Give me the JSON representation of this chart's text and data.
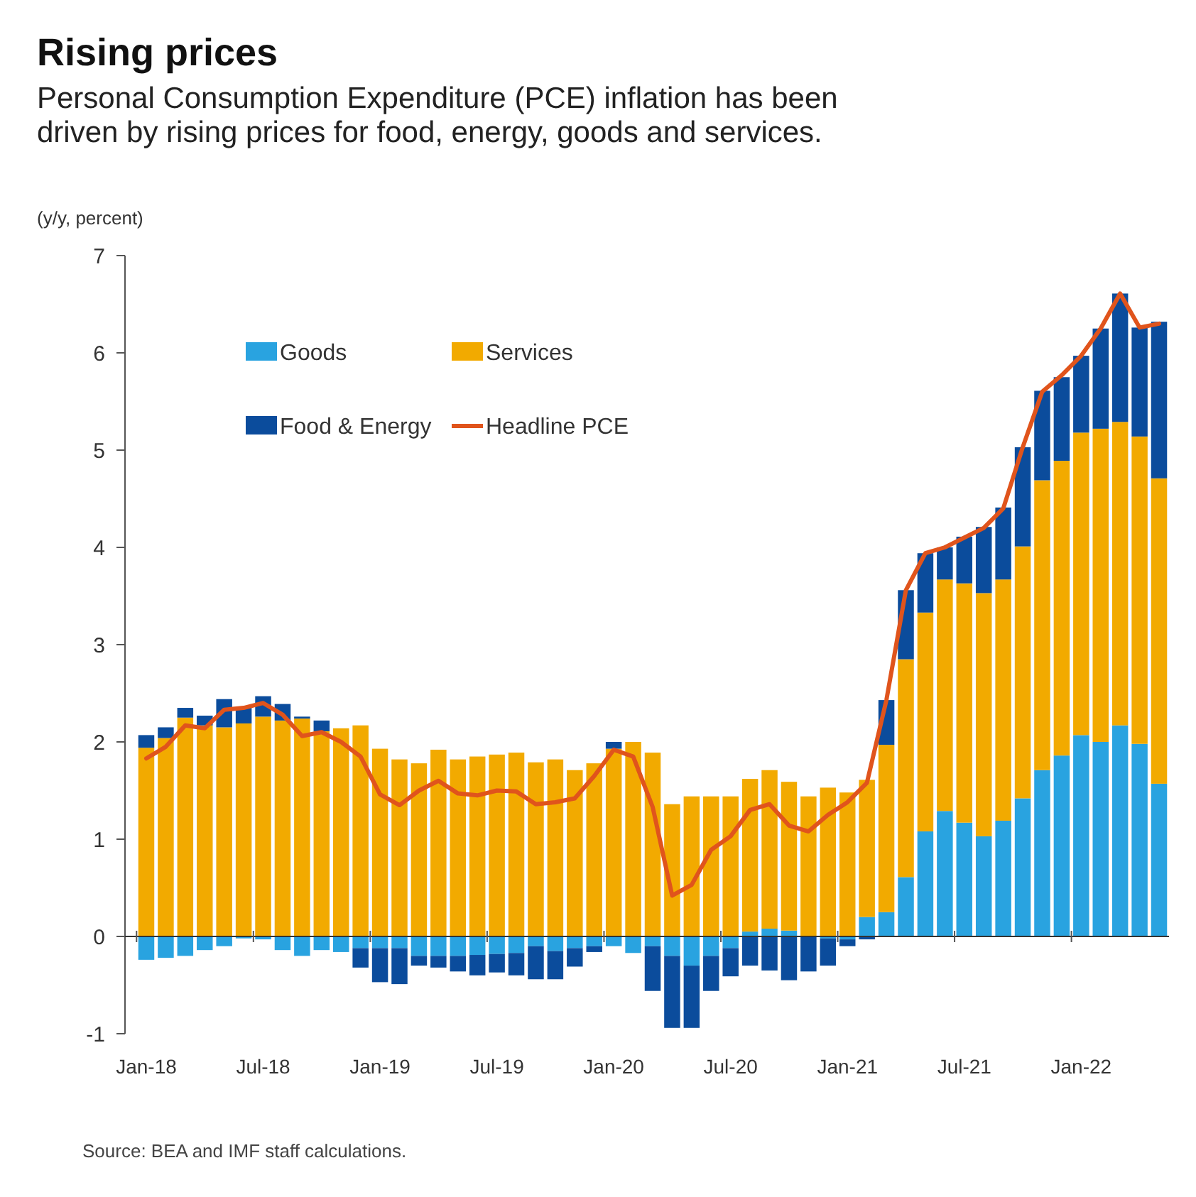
{
  "chart_data": {
    "type": "bar",
    "title": "Rising prices",
    "subtitle": "Personal Consumption Expenditure (PCE) inflation has been driven by rising prices for food, energy, goods and services.",
    "ylabel": "(y/y, percent)",
    "categories": [
      "Jan-18",
      null,
      null,
      null,
      null,
      null,
      "Jul-18",
      null,
      null,
      null,
      null,
      null,
      "Jan-19",
      null,
      null,
      null,
      null,
      null,
      "Jul-19",
      null,
      null,
      null,
      null,
      null,
      "Jan-20",
      null,
      null,
      null,
      null,
      null,
      "Jul-20",
      null,
      null,
      null,
      null,
      null,
      "Jan-21",
      null,
      null,
      null,
      null,
      null,
      "Jul-21",
      null,
      null,
      null,
      null,
      null,
      "Jan-22",
      null,
      null,
      null,
      null
    ],
    "stacked": true,
    "series": [
      {
        "name": "Goods",
        "color": "#29a3e0",
        "values": [
          -0.24,
          -0.22,
          -0.2,
          -0.14,
          -0.1,
          -0.02,
          -0.03,
          -0.14,
          -0.2,
          -0.14,
          -0.16,
          -0.12,
          -0.12,
          -0.12,
          -0.2,
          -0.2,
          -0.2,
          -0.19,
          -0.18,
          -0.17,
          -0.1,
          -0.15,
          -0.12,
          -0.1,
          -0.1,
          -0.17,
          -0.1,
          -0.2,
          -0.3,
          -0.2,
          -0.12,
          0.05,
          0.08,
          0.06,
          0,
          -0.02,
          -0.03,
          0.2,
          0.25,
          0.61,
          1.08,
          1.29,
          1.17,
          1.03,
          1.19,
          1.42,
          1.71,
          1.86,
          2.07,
          2.0,
          2.17,
          1.98,
          1.57
        ]
      },
      {
        "name": "Services",
        "color": "#f2aa00",
        "values": [
          1.94,
          2.04,
          2.25,
          2.17,
          2.15,
          2.19,
          2.26,
          2.22,
          2.24,
          2.11,
          2.14,
          2.17,
          1.93,
          1.82,
          1.78,
          1.92,
          1.82,
          1.85,
          1.87,
          1.89,
          1.79,
          1.82,
          1.71,
          1.78,
          1.93,
          2.0,
          1.89,
          1.36,
          1.44,
          1.44,
          1.44,
          1.57,
          1.63,
          1.53,
          1.44,
          1.53,
          1.48,
          1.41,
          1.72,
          2.24,
          2.25,
          2.38,
          2.46,
          2.5,
          2.48,
          2.59,
          2.98,
          3.03,
          3.11,
          3.22,
          3.12,
          3.16,
          3.14
        ]
      },
      {
        "name": "Food & Energy",
        "color": "#0b4c9c",
        "values": [
          0.13,
          0.11,
          0.1,
          0.1,
          0.29,
          0.16,
          0.21,
          0.17,
          0.02,
          0.11,
          0,
          -0.2,
          -0.35,
          -0.37,
          -0.1,
          -0.12,
          -0.16,
          -0.21,
          -0.19,
          -0.23,
          -0.34,
          -0.29,
          -0.19,
          -0.06,
          0.07,
          0,
          -0.46,
          -0.74,
          -0.64,
          -0.36,
          -0.29,
          -0.3,
          -0.35,
          -0.45,
          -0.36,
          -0.28,
          -0.07,
          -0.03,
          0.46,
          0.71,
          0.61,
          0.33,
          0.48,
          0.68,
          0.74,
          1.02,
          0.92,
          0.86,
          0.79,
          1.03,
          1.32,
          1.12,
          1.61
        ]
      },
      {
        "name": "Headline PCE",
        "type": "line",
        "color": "#e0541c",
        "values": [
          1.83,
          1.95,
          2.17,
          2.14,
          2.33,
          2.35,
          2.4,
          2.28,
          2.06,
          2.1,
          2.0,
          1.85,
          1.46,
          1.35,
          1.5,
          1.6,
          1.47,
          1.45,
          1.5,
          1.49,
          1.36,
          1.38,
          1.42,
          1.65,
          1.92,
          1.85,
          1.33,
          0.42,
          0.53,
          0.89,
          1.03,
          1.3,
          1.36,
          1.14,
          1.08,
          1.25,
          1.38,
          1.58,
          2.43,
          3.56,
          3.94,
          4.0,
          4.1,
          4.2,
          4.4,
          5.03,
          5.6,
          5.77,
          5.97,
          6.25,
          6.61,
          6.26,
          6.3
        ]
      }
    ],
    "ref_lines": [
      {
        "axis": "y",
        "value": 0,
        "color": "#333333"
      }
    ],
    "ylim": [
      -1,
      7
    ],
    "yticks": [
      -1,
      0,
      1,
      2,
      3,
      4,
      5,
      6,
      7
    ],
    "grid": false,
    "legend": "top left",
    "marker": "none",
    "line_style": "solid",
    "annotations": [
      "Source: BEA and IMF staff calculations."
    ]
  }
}
